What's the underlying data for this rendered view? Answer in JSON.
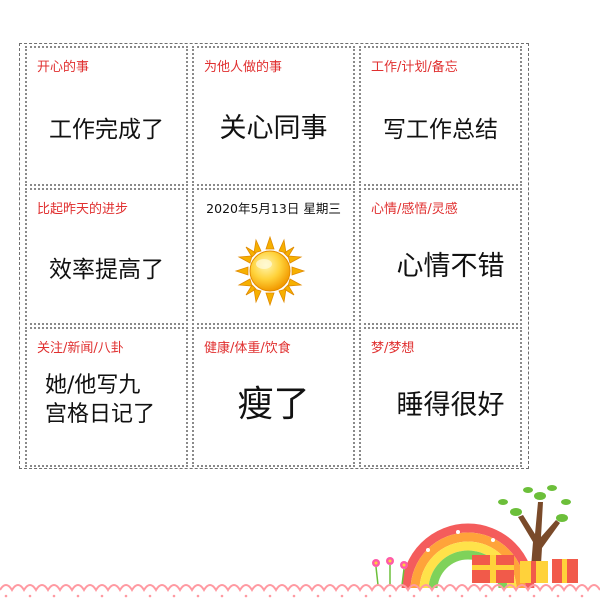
{
  "cells": {
    "happy": {
      "label": "开心的事",
      "text": "工作完成了"
    },
    "others": {
      "label": "为他人做的事",
      "text": "关心同事"
    },
    "work": {
      "label": "工作/计划/备忘",
      "text": "写工作总结"
    },
    "progress": {
      "label": "比起昨天的进步",
      "text": "效率提高了"
    },
    "center": {
      "date": "2020年5月13日 星期三",
      "weather_icon": "sun-icon"
    },
    "mood": {
      "label": "心情/感悟/灵感",
      "text": "心情不错"
    },
    "news": {
      "label": "关注/新闻/八卦",
      "text": "她/他写九\n宫格日记了"
    },
    "health": {
      "label": "健康/体重/饮食",
      "text": "瘦了"
    },
    "dream": {
      "label": "梦/梦想",
      "text": "睡得很好"
    }
  },
  "colors": {
    "label": "#e03030",
    "text": "#111111",
    "border": "#8a8a8a",
    "sun": "#f4b400",
    "lace": "#ff9aa2"
  },
  "decoration": {
    "icons": [
      "rainbow-icon",
      "tree-icon",
      "gift-box-icon",
      "flower-icon",
      "lace-border"
    ]
  }
}
